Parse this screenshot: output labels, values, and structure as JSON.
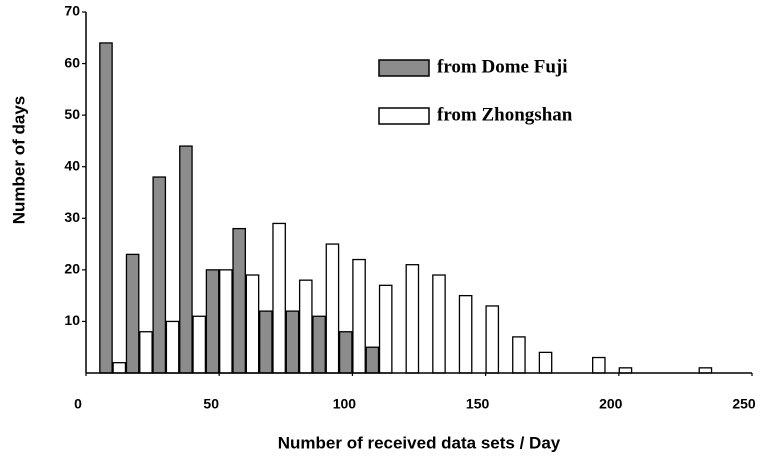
{
  "chart_data": {
    "type": "bar",
    "x_label": "Number of received data sets / Day",
    "y_label": "Number of days",
    "x": [
      10,
      20,
      30,
      40,
      50,
      60,
      70,
      80,
      90,
      100,
      110,
      120,
      130,
      140,
      150,
      160,
      170,
      180,
      190,
      200,
      210,
      220,
      230
    ],
    "series": [
      {
        "name": "from Dome Fuji",
        "color": "#8c8c8c",
        "values": [
          64,
          23,
          38,
          44,
          20,
          28,
          12,
          12,
          11,
          8,
          5,
          0,
          0,
          0,
          0,
          0,
          0,
          0,
          0,
          0,
          0,
          0,
          0
        ]
      },
      {
        "name": "from Zhongshan",
        "color": "#ffffff",
        "values": [
          2,
          8,
          10,
          11,
          20,
          19,
          29,
          18,
          25,
          22,
          17,
          21,
          19,
          15,
          13,
          7,
          4,
          0,
          3,
          1,
          0,
          0,
          1
        ]
      }
    ],
    "xlim": [
      0,
      250
    ],
    "xticks": [
      0,
      50,
      100,
      150,
      200,
      250
    ],
    "ylim": [
      0,
      70
    ],
    "yticks": [
      10,
      20,
      30,
      40,
      50,
      60,
      70
    ],
    "grid": false,
    "legend": "upper right"
  }
}
